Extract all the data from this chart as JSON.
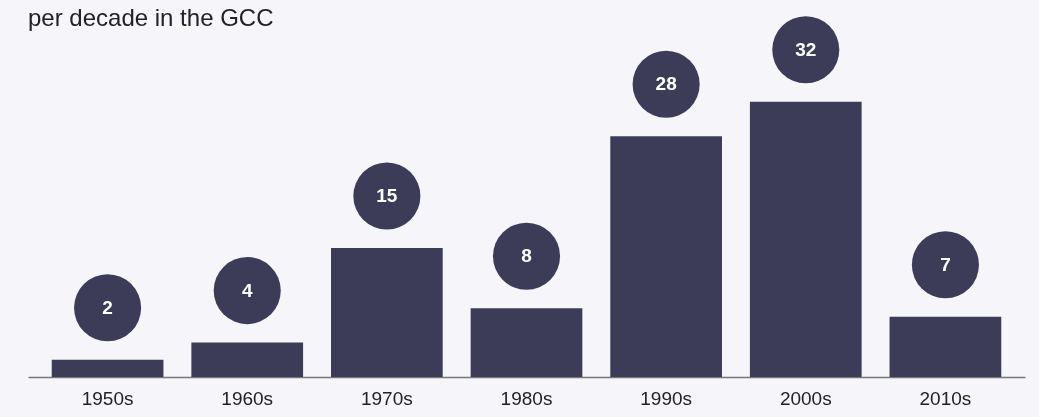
{
  "chart_data": {
    "type": "bar",
    "title": "per decade in the GCC",
    "categories": [
      "1950s",
      "1960s",
      "1970s",
      "1980s",
      "1990s",
      "2000s",
      "2010s"
    ],
    "values": [
      2,
      4,
      15,
      8,
      28,
      32,
      7
    ],
    "color": "#3c3c58",
    "data_labels": true
  }
}
